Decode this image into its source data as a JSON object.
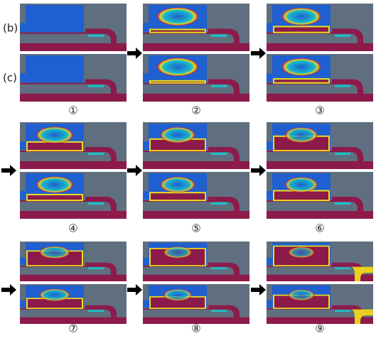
{
  "labels": {
    "b": "(b)",
    "c": "(c)"
  },
  "steps": [
    "①",
    "②",
    "③",
    "④",
    "⑤",
    "⑥",
    "⑦",
    "⑧",
    "⑨"
  ]
}
